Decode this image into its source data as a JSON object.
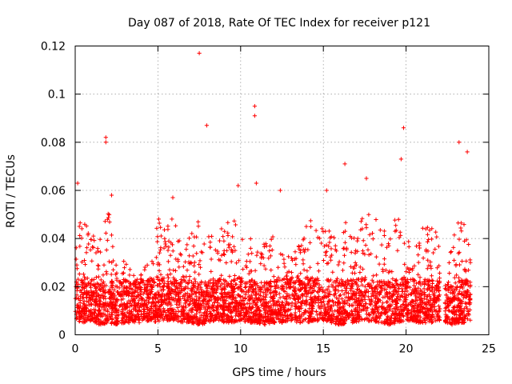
{
  "chart_data": {
    "type": "scatter",
    "title": "Day 087 of 2018, Rate Of TEC Index for receiver p121",
    "xlabel": "GPS time / hours",
    "ylabel": "ROTI / TECUs",
    "xlim": [
      0,
      25
    ],
    "ylim": [
      0,
      0.12
    ],
    "xticks": [
      0,
      5,
      10,
      15,
      20,
      25
    ],
    "xtick_labels": [
      "0",
      "5",
      "10",
      "15",
      "20",
      "25"
    ],
    "yticks": [
      0,
      0.02,
      0.04,
      0.06,
      0.08,
      0.1,
      0.12
    ],
    "ytick_labels": [
      "0",
      "0.02",
      "0.04",
      "0.06",
      "0.08",
      "0.1",
      "0.12"
    ],
    "grid": true,
    "marker": "+",
    "color": "#ff0000",
    "gaps_hours": [
      [
        22.05,
        22.35
      ]
    ],
    "notable_points": [
      {
        "x": 7.5,
        "y": 0.117
      },
      {
        "x": 7.95,
        "y": 0.087
      },
      {
        "x": 10.85,
        "y": 0.095
      },
      {
        "x": 10.85,
        "y": 0.091
      },
      {
        "x": 19.85,
        "y": 0.086
      },
      {
        "x": 1.85,
        "y": 0.082
      },
      {
        "x": 1.85,
        "y": 0.08
      },
      {
        "x": 23.2,
        "y": 0.08
      },
      {
        "x": 23.7,
        "y": 0.076
      },
      {
        "x": 19.7,
        "y": 0.073
      },
      {
        "x": 16.3,
        "y": 0.071
      },
      {
        "x": 17.6,
        "y": 0.065
      },
      {
        "x": 0.15,
        "y": 0.063
      },
      {
        "x": 10.95,
        "y": 0.063
      },
      {
        "x": 9.85,
        "y": 0.062
      },
      {
        "x": 12.4,
        "y": 0.06
      },
      {
        "x": 15.2,
        "y": 0.06
      },
      {
        "x": 2.2,
        "y": 0.058
      },
      {
        "x": 5.9,
        "y": 0.057
      }
    ],
    "envelope": {
      "x": [
        0,
        0.5,
        1,
        1.5,
        2,
        2.5,
        3,
        3.5,
        4,
        4.5,
        5,
        5.5,
        6,
        6.5,
        7,
        7.5,
        8,
        8.5,
        9,
        9.5,
        10,
        10.5,
        11,
        11.5,
        12,
        12.5,
        13,
        13.5,
        14,
        14.5,
        15,
        15.5,
        16,
        16.5,
        17,
        17.5,
        18,
        18.5,
        19,
        19.5,
        20,
        20.5,
        21,
        21.5,
        22,
        22.4,
        22.8,
        23.2,
        23.6,
        23.9
      ],
      "upper": [
        0.045,
        0.05,
        0.043,
        0.04,
        0.055,
        0.028,
        0.032,
        0.025,
        0.028,
        0.03,
        0.05,
        0.045,
        0.05,
        0.035,
        0.042,
        0.048,
        0.045,
        0.04,
        0.048,
        0.05,
        0.045,
        0.04,
        0.04,
        0.04,
        0.042,
        0.035,
        0.033,
        0.038,
        0.05,
        0.048,
        0.05,
        0.042,
        0.04,
        0.05,
        0.045,
        0.05,
        0.05,
        0.05,
        0.045,
        0.05,
        0.045,
        0.04,
        0.048,
        0.045,
        0.045,
        0.02,
        0.04,
        0.05,
        0.045,
        0.035
      ],
      "lower": [
        0.006,
        0.005,
        0.006,
        0.004,
        0.005,
        0.004,
        0.005,
        0.005,
        0.005,
        0.006,
        0.005,
        0.006,
        0.006,
        0.005,
        0.005,
        0.004,
        0.005,
        0.006,
        0.005,
        0.005,
        0.006,
        0.005,
        0.005,
        0.004,
        0.005,
        0.005,
        0.006,
        0.005,
        0.005,
        0.006,
        0.005,
        0.005,
        0.004,
        0.005,
        0.005,
        0.006,
        0.005,
        0.005,
        0.004,
        0.005,
        0.006,
        0.005,
        0.005,
        0.005,
        0.006,
        0.005,
        0.004,
        0.005,
        0.005,
        0.005
      ]
    }
  }
}
